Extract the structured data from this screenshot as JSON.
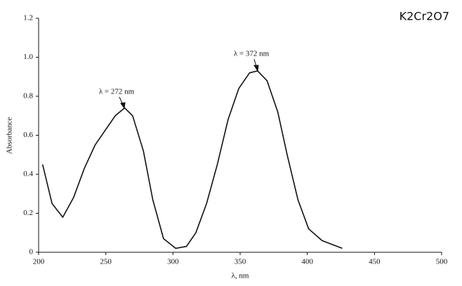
{
  "chart_data": {
    "type": "line",
    "corner_label": "K2Cr2O7",
    "x_label": "λ, nm",
    "y_label": "Absorbance",
    "annotations": [
      "λ = 272 nm",
      "λ = 372 nm"
    ],
    "x": [
      203,
      210,
      218,
      226,
      234,
      242,
      250,
      257,
      264,
      270,
      278,
      285,
      293,
      302,
      310,
      317,
      325,
      333,
      341,
      349,
      357,
      363,
      370,
      378,
      385,
      393,
      401,
      411,
      426
    ],
    "series": [
      {
        "color": "#111111",
        "values": [
          0.45,
          0.25,
          0.18,
          0.28,
          0.43,
          0.55,
          0.63,
          0.7,
          0.74,
          0.7,
          0.52,
          0.27,
          0.07,
          0.02,
          0.03,
          0.1,
          0.25,
          0.45,
          0.68,
          0.84,
          0.92,
          0.93,
          0.88,
          0.72,
          0.5,
          0.27,
          0.12,
          0.06,
          0.02
        ]
      }
    ],
    "xlim": [
      200,
      500
    ],
    "xticks": [
      200,
      250,
      300,
      350,
      400,
      450,
      500
    ],
    "ylim": [
      0,
      1.2
    ],
    "yticks": [
      0,
      0.2,
      0.4,
      0.6,
      0.8,
      {
        "value": 1.0,
        "label": "1.0"
      },
      1.2
    ],
    "grid": false
  }
}
